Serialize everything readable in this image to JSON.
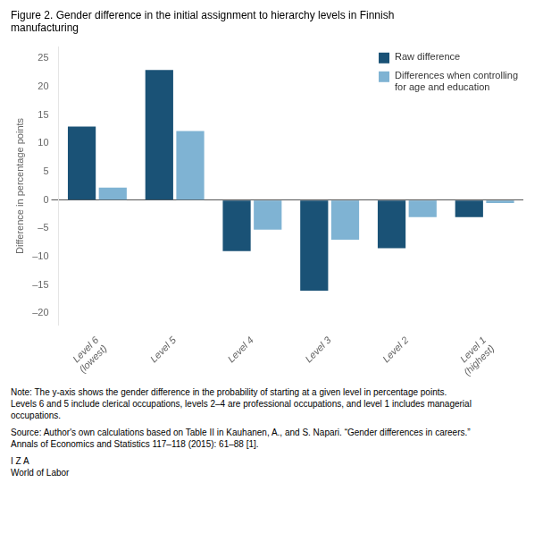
{
  "chart_data": {
    "type": "bar",
    "title": [
      "Figure 2. Gender difference in the initial assignment to hierarchy levels in Finnish",
      "manufacturing"
    ],
    "categories": [
      "Level 6\n(lowest)",
      "Level 5",
      "Level 4",
      "Level 3",
      "Level 2",
      "Level 1\n(highest)"
    ],
    "series": [
      {
        "name": "Raw difference",
        "color": "#1a5276",
        "values": [
          13,
          23,
          -9,
          -16,
          -8.5,
          -3
        ]
      },
      {
        "name": "Differences when controlling\nfor age and education",
        "color": "#7fb3d3",
        "values": [
          2.2,
          12.2,
          -5.2,
          -7,
          -3,
          -0.5
        ]
      }
    ],
    "ylabel": "Difference in percentage points",
    "ylim": [
      -22,
      27
    ],
    "yticks": [
      {
        "value": -20,
        "label": "–20"
      },
      {
        "value": -15,
        "label": "–15"
      },
      {
        "value": -10,
        "label": "–10"
      },
      {
        "value": -5,
        "label": "–5"
      },
      0,
      5,
      10,
      15,
      20,
      25
    ],
    "grid": false,
    "legend": "upper right",
    "annotations": [
      "Note: The y-axis shows the gender difference in the probability of starting at a given level in percentage points.\nLevels 6 and 5 include clerical occupations, levels 2–4 are professional occupations, and level 1 includes managerial\noccupations.",
      "Source: Author's own calculations based on Table II in Kauhanen, A., and S. Napari. “Gender differences in careers.”\nAnnals of Economics and Statistics 117–118 (2015): 61–88 [1].",
      "I Z A\nWorld of Labor"
    ]
  }
}
